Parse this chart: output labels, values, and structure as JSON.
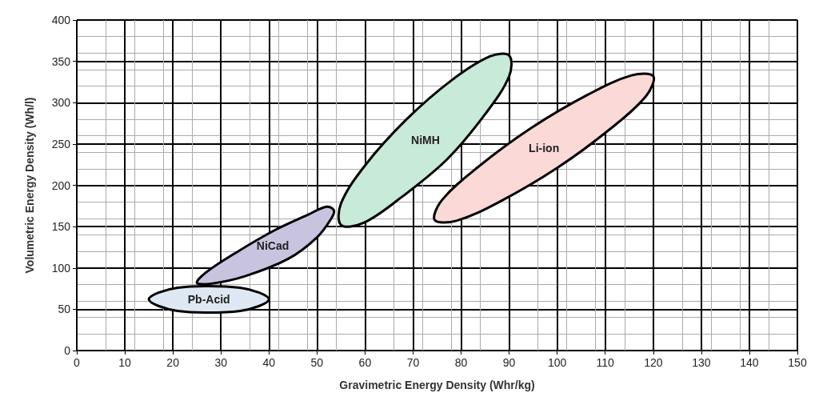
{
  "chart_data": {
    "type": "area",
    "xlabel": "Gravimetric Energy Density (Whr/kg)",
    "ylabel": "Volumetric Energy Density (Wh/l)",
    "xlim": [
      0,
      150
    ],
    "xticks": [
      0,
      10,
      20,
      30,
      40,
      50,
      60,
      70,
      80,
      90,
      100,
      110,
      120,
      130,
      140,
      150
    ],
    "ylim": [
      0,
      400
    ],
    "yticks": [
      0,
      50,
      100,
      150,
      200,
      250,
      300,
      350,
      400
    ],
    "grid": true,
    "legend": false,
    "series": [
      {
        "name": "Pb-Acid",
        "color": "#dde8f3",
        "x": [
          40,
          38,
          34,
          27.5,
          21,
          17,
          15,
          17,
          21,
          27.5,
          34,
          38
        ],
        "values": [
          62,
          70,
          76,
          78,
          76,
          70,
          62,
          54,
          48,
          46,
          48,
          54
        ]
      },
      {
        "name": "NiCad",
        "color": "#c8c4e0",
        "x": [
          53.5,
          53,
          50,
          44,
          35,
          28,
          25,
          27,
          33,
          41,
          48,
          52
        ],
        "values": [
          170,
          160,
          137,
          111,
          90,
          81,
          82,
          95,
          118,
          145,
          164,
          174
        ]
      },
      {
        "name": "NiMH",
        "color": "#c8ead8",
        "x": [
          90,
          90,
          85,
          77,
          67,
          59.5,
          55,
          55,
          60,
          68.5,
          78,
          86
        ],
        "values": [
          357,
          332,
          286,
          231,
          183,
          154,
          152,
          178,
          224,
          279,
          327,
          356
        ]
      },
      {
        "name": "Li-ion",
        "color": "#fbd9d6",
        "x": [
          120,
          118.5,
          111,
          100,
          88,
          79,
          74.5,
          76,
          83.5,
          94.5,
          106.5,
          115.5
        ],
        "values": [
          332,
          308,
          268,
          221,
          180,
          157,
          158,
          182,
          222,
          269,
          310,
          333
        ]
      }
    ]
  }
}
